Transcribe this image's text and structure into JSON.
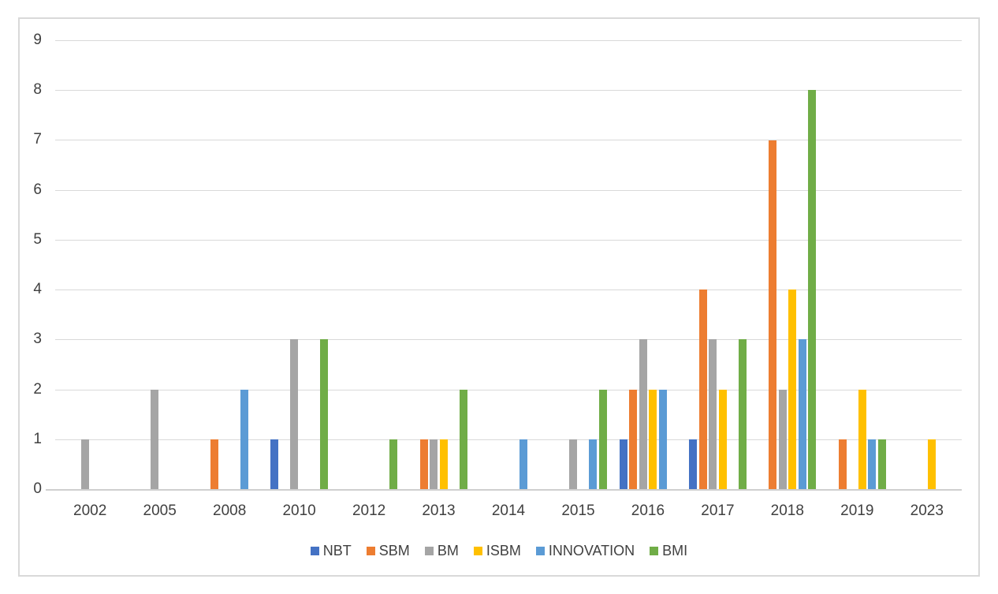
{
  "chart_data": {
    "type": "bar",
    "title": "",
    "xlabel": "",
    "ylabel": "",
    "categories": [
      "2002",
      "2005",
      "2008",
      "2010",
      "2012",
      "2013",
      "2014",
      "2015",
      "2016",
      "2017",
      "2018",
      "2019",
      "2023"
    ],
    "series": [
      {
        "name": "NBT",
        "color": "#4472C4",
        "values": [
          0,
          0,
          0,
          1,
          0,
          0,
          0,
          0,
          1,
          1,
          0,
          0,
          0
        ]
      },
      {
        "name": "SBM",
        "color": "#ED7D31",
        "values": [
          0,
          0,
          1,
          0,
          0,
          1,
          0,
          0,
          2,
          4,
          7,
          1,
          0
        ]
      },
      {
        "name": "BM",
        "color": "#A5A5A5",
        "values": [
          1,
          2,
          0,
          3,
          0,
          1,
          0,
          1,
          3,
          3,
          2,
          0,
          0
        ]
      },
      {
        "name": "ISBM",
        "color": "#FFC000",
        "values": [
          0,
          0,
          0,
          0,
          0,
          1,
          0,
          0,
          2,
          2,
          4,
          2,
          1
        ]
      },
      {
        "name": "INNOVATION",
        "color": "#5B9BD5",
        "values": [
          0,
          0,
          2,
          0,
          0,
          0,
          1,
          1,
          2,
          0,
          3,
          1,
          0
        ]
      },
      {
        "name": "BMI",
        "color": "#70AD47",
        "values": [
          0,
          0,
          0,
          3,
          1,
          2,
          0,
          2,
          0,
          3,
          8,
          1,
          0
        ]
      }
    ],
    "ylim": [
      0,
      9
    ],
    "ytick_step": 1,
    "y_ticks": [
      "0",
      "1",
      "2",
      "3",
      "4",
      "5",
      "6",
      "7",
      "8",
      "9"
    ],
    "grid": true,
    "grid_color": "#D9D9D9",
    "axis_line_color": "#CFCFCF",
    "tick_label_color": "#404040",
    "legend_position": "bottom"
  }
}
